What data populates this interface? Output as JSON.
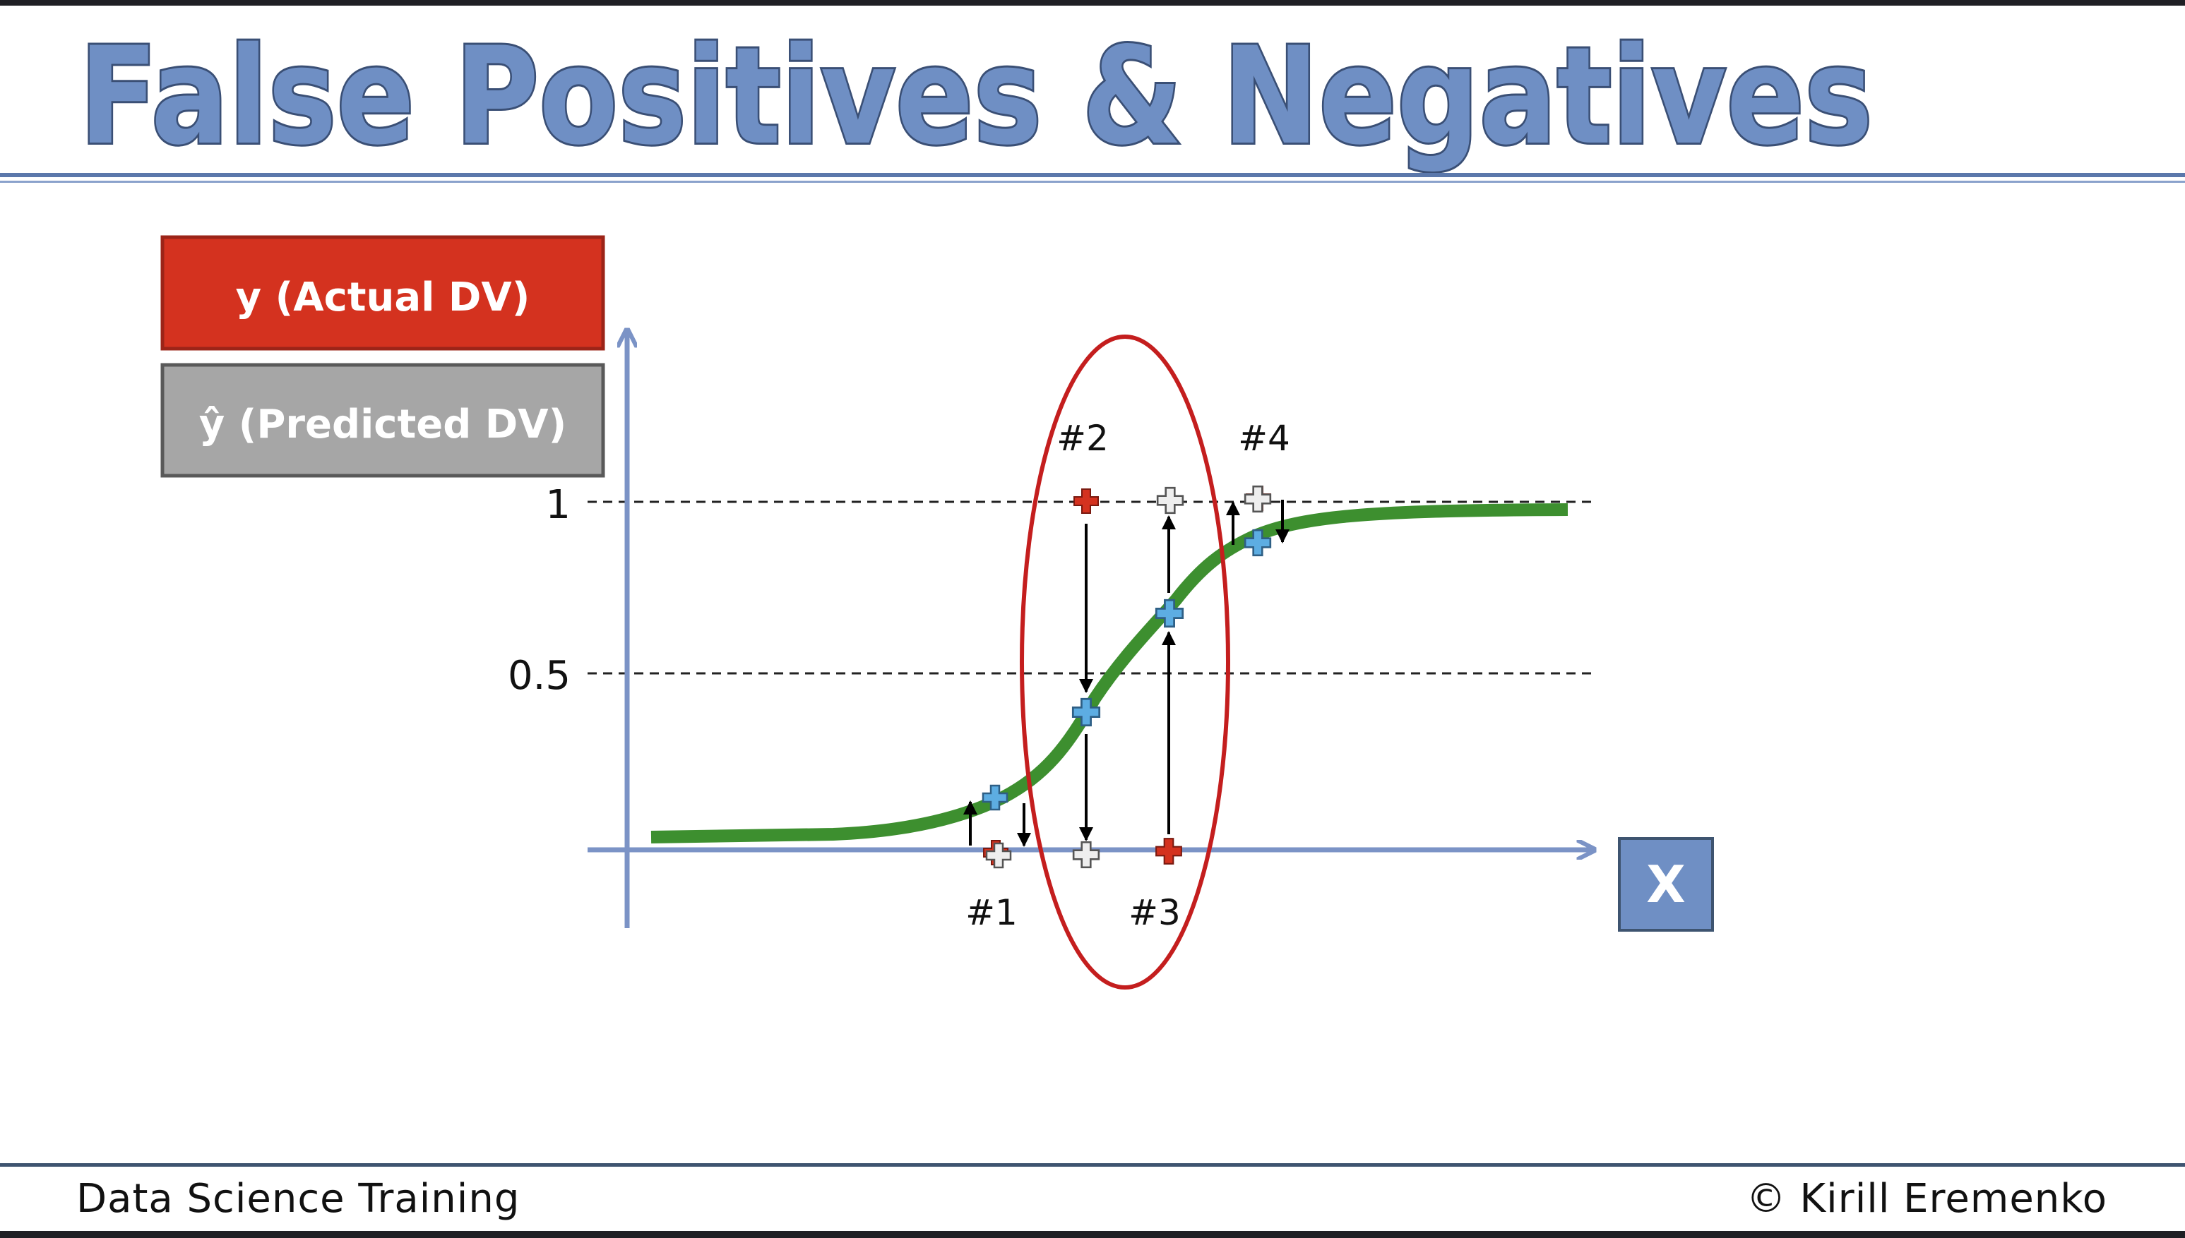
{
  "slide": {
    "title": "False Positives & Negatives",
    "footer_left": "Data Science Training",
    "footer_right": "© Kirill Eremenko"
  },
  "legend": {
    "actual_label": "y (Actual DV)",
    "predicted_label": "ŷ (Predicted DV)",
    "actual_color": "#d4321f",
    "predicted_color": "#a6a6a6"
  },
  "diagram": {
    "x_axis_label": "X",
    "y_ticks": [
      "1",
      "0.5"
    ],
    "point_labels": [
      "#1",
      "#2",
      "#3",
      "#4"
    ],
    "colors": {
      "axis": "#7b93c6",
      "curve": "#3d8f2f",
      "actual_point": "#d4321f",
      "predicted_point": "#5dade2",
      "projected_point": "#eeeeee",
      "highlight_ellipse": "#c41e1e",
      "title_fill": "#6f8fc4"
    },
    "icons": [
      "plus-marker-icon",
      "arrow-up-icon",
      "arrow-down-icon"
    ]
  }
}
